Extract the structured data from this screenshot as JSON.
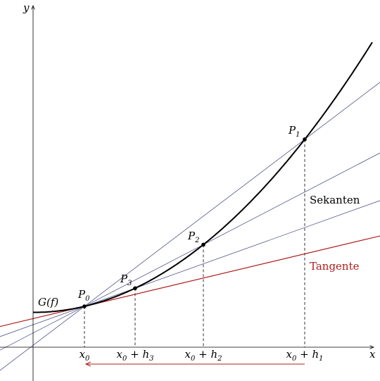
{
  "axes": {
    "x": "x",
    "y": "y"
  },
  "graph_label": "G(f)",
  "points": [
    {
      "base": "P",
      "sub": "0"
    },
    {
      "base": "P",
      "sub": "1"
    },
    {
      "base": "P",
      "sub": "2"
    },
    {
      "base": "P",
      "sub": "3"
    }
  ],
  "x_labels": [
    {
      "base": "x",
      "sub": "0"
    },
    {
      "base": "x",
      "sub": "0",
      "rest": " + h",
      "rest_sub": "3"
    },
    {
      "base": "x",
      "sub": "0",
      "rest": " + h",
      "rest_sub": "2"
    },
    {
      "base": "x",
      "sub": "0",
      "rest": " + h",
      "rest_sub": "1"
    }
  ],
  "annotations": {
    "secants": "Sekanten",
    "tangent": "Tangente"
  }
}
